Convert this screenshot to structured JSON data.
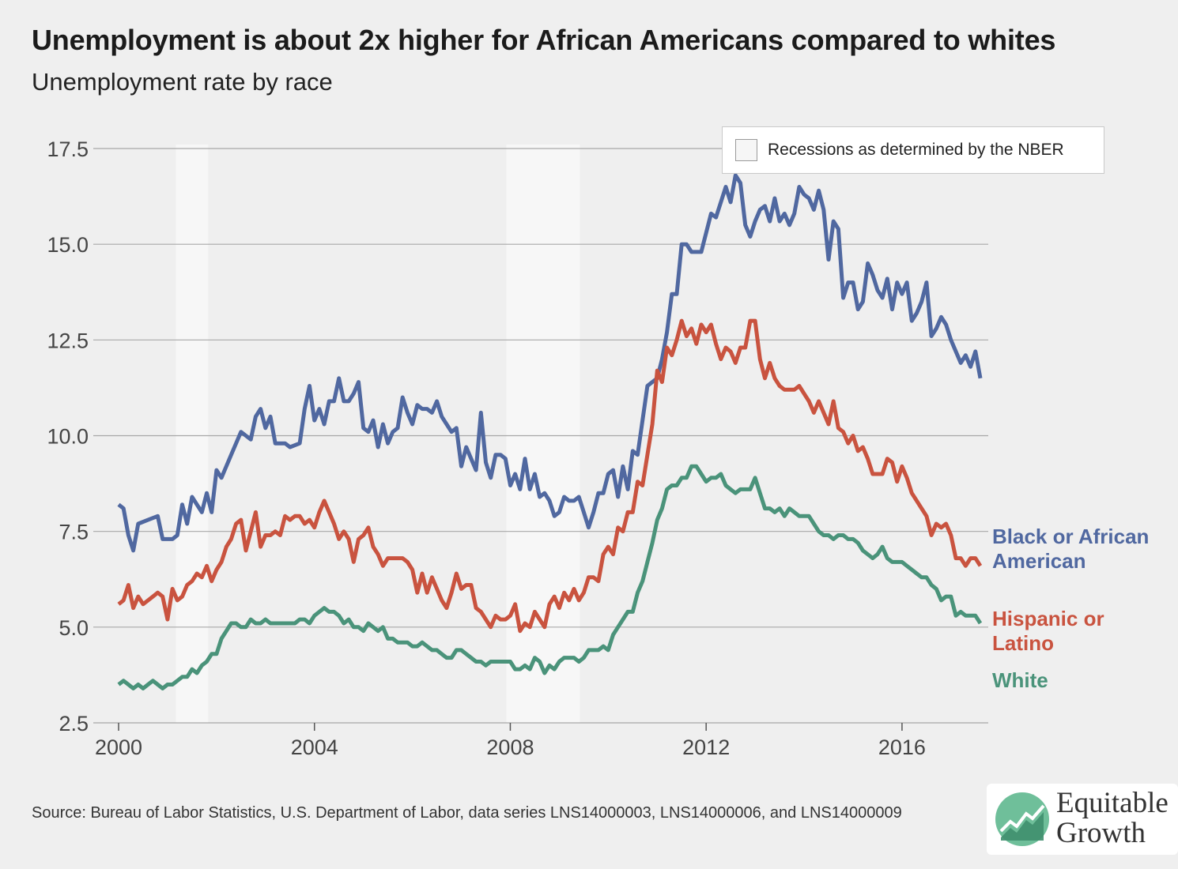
{
  "header": {
    "title": "Unemployment is about 2x higher for African Americans compared to whites",
    "subtitle": "Unemployment rate by race"
  },
  "legend": {
    "recession_label": "Recessions as determined by the NBER"
  },
  "footer": {
    "source": "Source: Bureau of Labor Statistics, U.S. Department of Labor, data series LNS14000003, LNS14000006, and LNS14000009"
  },
  "logo": {
    "line1": "Equitable",
    "line2": "Growth"
  },
  "colors": {
    "black": "#5068a0",
    "hispanic": "#c9533f",
    "white": "#4a937a",
    "recession": "#f7f7f7",
    "grid": "#a8a8a8"
  },
  "chart_data": {
    "type": "line",
    "title": "Unemployment is about 2x higher for African Americans compared to whites",
    "subtitle": "Unemployment rate by race",
    "xlim": [
      2000,
      2017.6
    ],
    "ylim": [
      2.5,
      17.5
    ],
    "x_ticks": [
      2000,
      2004,
      2008,
      2012,
      2016
    ],
    "x_tick_labels": [
      "2000",
      "2004",
      "2008",
      "2012",
      "2016"
    ],
    "y_ticks": [
      2.5,
      5.0,
      7.5,
      10.0,
      12.5,
      15.0,
      17.5
    ],
    "y_tick_labels": [
      "2.5",
      "5.0",
      "7.5",
      "10.0",
      "12.5",
      "15.0",
      "17.5"
    ],
    "grid": "horizontal",
    "recessions": [
      [
        2001.17,
        2001.83
      ],
      [
        2007.92,
        2009.42
      ]
    ],
    "series": [
      {
        "name": "Black or African American",
        "label_lines": [
          "Black or African",
          "American"
        ],
        "color_key": "black",
        "points": [
          [
            2000.0,
            8.2
          ],
          [
            2000.1,
            8.1
          ],
          [
            2000.2,
            7.4
          ],
          [
            2000.3,
            7.0
          ],
          [
            2000.4,
            7.7
          ],
          [
            2000.6,
            7.8
          ],
          [
            2000.8,
            7.9
          ],
          [
            2000.9,
            7.3
          ],
          [
            2001.1,
            7.3
          ],
          [
            2001.2,
            7.4
          ],
          [
            2001.3,
            8.2
          ],
          [
            2001.4,
            7.7
          ],
          [
            2001.5,
            8.4
          ],
          [
            2001.7,
            8.0
          ],
          [
            2001.8,
            8.5
          ],
          [
            2001.9,
            8.0
          ],
          [
            2002.0,
            9.1
          ],
          [
            2002.1,
            8.9
          ],
          [
            2002.3,
            9.5
          ],
          [
            2002.5,
            10.1
          ],
          [
            2002.7,
            9.9
          ],
          [
            2002.8,
            10.5
          ],
          [
            2002.9,
            10.7
          ],
          [
            2003.0,
            10.2
          ],
          [
            2003.1,
            10.5
          ],
          [
            2003.2,
            9.8
          ],
          [
            2003.4,
            9.8
          ],
          [
            2003.5,
            9.7
          ],
          [
            2003.7,
            9.8
          ],
          [
            2003.8,
            10.7
          ],
          [
            2003.9,
            11.3
          ],
          [
            2004.0,
            10.4
          ],
          [
            2004.1,
            10.7
          ],
          [
            2004.2,
            10.3
          ],
          [
            2004.3,
            10.9
          ],
          [
            2004.4,
            10.9
          ],
          [
            2004.5,
            11.5
          ],
          [
            2004.6,
            10.9
          ],
          [
            2004.7,
            10.9
          ],
          [
            2004.8,
            11.1
          ],
          [
            2004.9,
            11.4
          ],
          [
            2005.0,
            10.2
          ],
          [
            2005.1,
            10.1
          ],
          [
            2005.2,
            10.4
          ],
          [
            2005.3,
            9.7
          ],
          [
            2005.4,
            10.3
          ],
          [
            2005.5,
            9.8
          ],
          [
            2005.6,
            10.1
          ],
          [
            2005.7,
            10.2
          ],
          [
            2005.8,
            11.0
          ],
          [
            2005.9,
            10.6
          ],
          [
            2006.0,
            10.3
          ],
          [
            2006.1,
            10.8
          ],
          [
            2006.2,
            10.7
          ],
          [
            2006.3,
            10.7
          ],
          [
            2006.4,
            10.6
          ],
          [
            2006.5,
            10.9
          ],
          [
            2006.6,
            10.5
          ],
          [
            2006.7,
            10.3
          ],
          [
            2006.8,
            10.1
          ],
          [
            2006.9,
            10.2
          ],
          [
            2007.0,
            9.2
          ],
          [
            2007.1,
            9.7
          ],
          [
            2007.2,
            9.4
          ],
          [
            2007.3,
            9.1
          ],
          [
            2007.4,
            10.6
          ],
          [
            2007.5,
            9.3
          ],
          [
            2007.6,
            8.9
          ],
          [
            2007.7,
            9.5
          ],
          [
            2007.8,
            9.5
          ],
          [
            2007.9,
            9.4
          ],
          [
            2008.0,
            8.7
          ],
          [
            2008.1,
            9.0
          ],
          [
            2008.2,
            8.6
          ],
          [
            2008.3,
            9.4
          ],
          [
            2008.4,
            8.6
          ],
          [
            2008.5,
            9.0
          ],
          [
            2008.6,
            8.4
          ],
          [
            2008.7,
            8.5
          ],
          [
            2008.8,
            8.3
          ],
          [
            2008.9,
            7.9
          ],
          [
            2009.0,
            8.0
          ],
          [
            2009.1,
            8.4
          ],
          [
            2009.2,
            8.3
          ],
          [
            2009.3,
            8.3
          ],
          [
            2009.4,
            8.4
          ],
          [
            2009.5,
            8.0
          ],
          [
            2009.6,
            7.6
          ],
          [
            2009.7,
            8.0
          ],
          [
            2009.8,
            8.5
          ],
          [
            2009.9,
            8.5
          ],
          [
            2010.0,
            9.0
          ],
          [
            2010.1,
            9.1
          ],
          [
            2010.2,
            8.4
          ],
          [
            2010.3,
            9.2
          ],
          [
            2010.4,
            8.6
          ],
          [
            2010.5,
            9.6
          ],
          [
            2010.6,
            9.5
          ],
          [
            2010.7,
            10.4
          ],
          [
            2010.8,
            11.3
          ],
          [
            2010.9,
            11.4
          ],
          [
            2011.0,
            11.5
          ],
          [
            2011.1,
            12.0
          ],
          [
            2011.2,
            12.7
          ],
          [
            2011.3,
            13.7
          ],
          [
            2011.4,
            13.7
          ],
          [
            2011.5,
            15.0
          ],
          [
            2011.6,
            15.0
          ],
          [
            2011.7,
            14.8
          ],
          [
            2011.8,
            14.8
          ],
          [
            2011.9,
            14.8
          ],
          [
            2012.0,
            15.3
          ],
          [
            2012.1,
            15.8
          ],
          [
            2012.2,
            15.7
          ],
          [
            2012.3,
            16.1
          ],
          [
            2012.4,
            16.5
          ],
          [
            2012.5,
            16.1
          ],
          [
            2012.6,
            16.8
          ],
          [
            2012.7,
            16.6
          ],
          [
            2012.8,
            15.5
          ],
          [
            2012.9,
            15.2
          ],
          [
            2013.0,
            15.6
          ],
          [
            2013.1,
            15.9
          ],
          [
            2013.2,
            16.0
          ],
          [
            2013.3,
            15.6
          ],
          [
            2013.4,
            16.2
          ],
          [
            2013.5,
            15.6
          ],
          [
            2013.6,
            15.8
          ],
          [
            2013.7,
            15.5
          ],
          [
            2013.8,
            15.8
          ],
          [
            2013.9,
            16.5
          ],
          [
            2014.0,
            16.3
          ],
          [
            2014.1,
            16.2
          ],
          [
            2014.2,
            15.9
          ],
          [
            2014.3,
            16.4
          ],
          [
            2014.4,
            15.9
          ],
          [
            2014.5,
            14.6
          ],
          [
            2014.6,
            15.6
          ],
          [
            2014.7,
            15.4
          ],
          [
            2014.8,
            13.6
          ],
          [
            2014.9,
            14.0
          ],
          [
            2015.0,
            14.0
          ],
          [
            2015.1,
            13.3
          ],
          [
            2015.2,
            13.5
          ],
          [
            2015.3,
            14.5
          ],
          [
            2015.4,
            14.2
          ],
          [
            2015.5,
            13.8
          ],
          [
            2015.6,
            13.6
          ],
          [
            2015.7,
            14.1
          ],
          [
            2015.8,
            13.3
          ],
          [
            2015.9,
            14.0
          ],
          [
            2016.0,
            13.7
          ],
          [
            2016.1,
            14.0
          ],
          [
            2016.2,
            13.0
          ],
          [
            2016.3,
            13.2
          ],
          [
            2016.4,
            13.5
          ],
          [
            2016.5,
            14.0
          ],
          [
            2016.6,
            12.6
          ],
          [
            2016.7,
            12.8
          ],
          [
            2016.8,
            13.1
          ],
          [
            2016.9,
            12.9
          ],
          [
            2017.0,
            12.5
          ],
          [
            2017.1,
            12.2
          ],
          [
            2017.2,
            11.9
          ],
          [
            2017.3,
            12.1
          ],
          [
            2017.4,
            11.8
          ],
          [
            2017.5,
            12.2
          ],
          [
            2017.6,
            11.5
          ]
        ]
      }
    ]
  }
}
